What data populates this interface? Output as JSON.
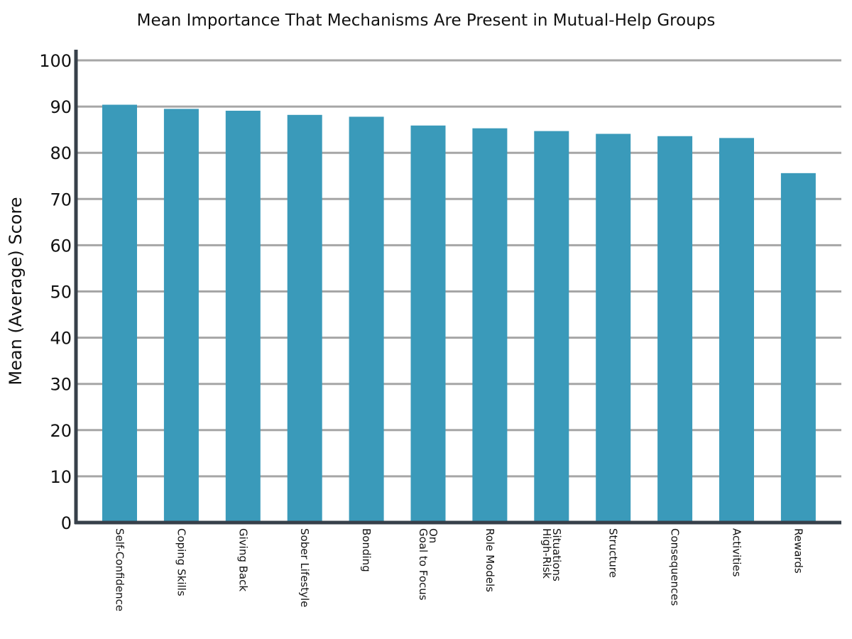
{
  "chart_data": {
    "type": "bar",
    "title": "Mean Importance That Mechanisms Are Present in Mutual-Help Groups",
    "xlabel": "",
    "ylabel": "Mean (Average) Score",
    "categories": [
      "Self-Confidence",
      "Coping Skills",
      "Giving Back",
      "Sober Lifestyle",
      "Bonding",
      "Goal to Focus On",
      "Role Models",
      "High-Risk Situations",
      "Structure",
      "Consequences",
      "Activities",
      "Rewards"
    ],
    "category_lines": [
      [
        "Self-Confidence"
      ],
      [
        "Coping Skills"
      ],
      [
        "Giving Back"
      ],
      [
        "Sober Lifestyle"
      ],
      [
        "Bonding"
      ],
      [
        "Goal to Focus",
        "On"
      ],
      [
        "Role Models"
      ],
      [
        "High-Risk",
        "Situations"
      ],
      [
        "Structure"
      ],
      [
        "Consequences"
      ],
      [
        "Activities"
      ],
      [
        "Rewards"
      ]
    ],
    "values": [
      90.4,
      89.5,
      89.1,
      88.2,
      87.8,
      85.9,
      85.3,
      84.7,
      84.1,
      83.6,
      83.2,
      75.6
    ],
    "ylim": [
      0,
      100
    ],
    "yticks": [
      0,
      10,
      20,
      30,
      40,
      50,
      60,
      70,
      80,
      90,
      100
    ],
    "grid": true,
    "legend": "none",
    "colors": {
      "bar": "#3a9aba",
      "grid": "#a6a6a6",
      "axis": "#37404a",
      "text": "#111111"
    }
  }
}
